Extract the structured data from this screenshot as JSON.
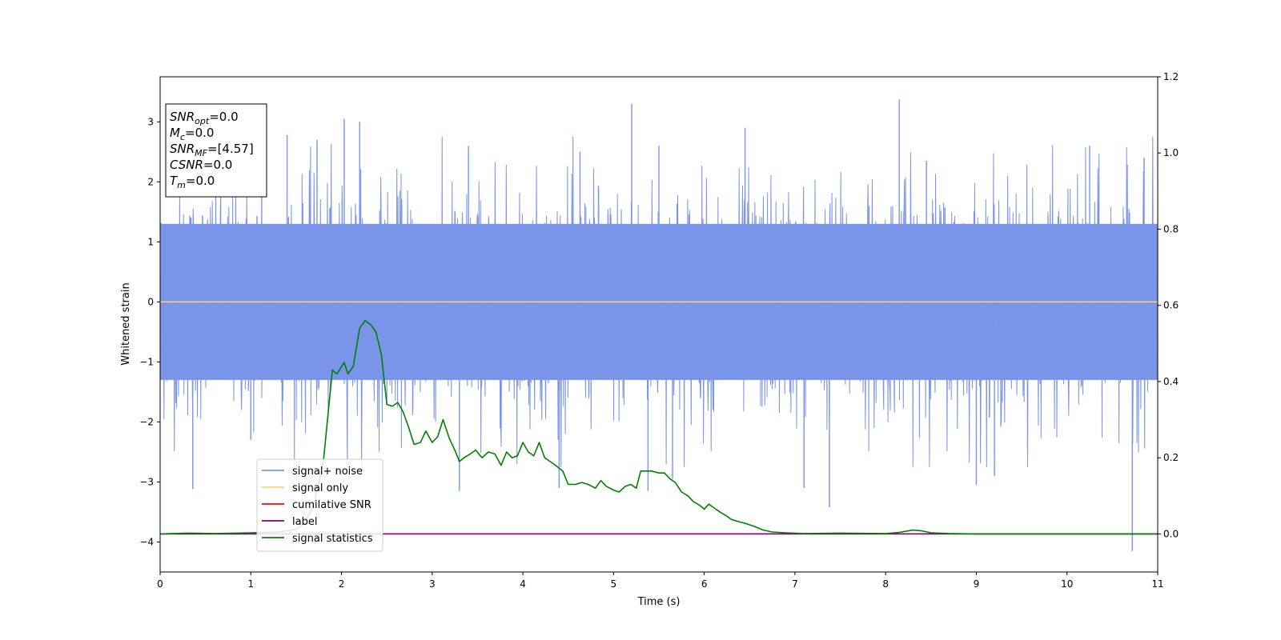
{
  "chart_data": {
    "type": "line",
    "xlabel": "Time (s)",
    "ylabel": "Whitened strain",
    "xlim": [
      0,
      11
    ],
    "ylim": [
      -4.5,
      3.75
    ],
    "y2lim": [
      -0.1,
      1.2
    ],
    "x_ticks": [
      0,
      1,
      2,
      3,
      4,
      5,
      6,
      7,
      8,
      9,
      10,
      11
    ],
    "y_ticks": [
      -4,
      -3,
      -2,
      -1,
      0,
      1,
      2,
      3
    ],
    "y2_ticks": [
      0.0,
      0.2,
      0.4,
      0.6,
      0.8,
      1.0,
      1.2
    ],
    "grid": false,
    "legend_position": "lower-left",
    "info_box": {
      "position": "upper-left",
      "lines": [
        {
          "base": "SNR",
          "sub": "opt",
          "value": "=0.0"
        },
        {
          "base": "M",
          "sub": "c",
          "value": "=0.0"
        },
        {
          "base": "SNR",
          "sub": "MF",
          "value": "=[4.57]"
        },
        {
          "base": "CSNR",
          "sub": "",
          "value": "=0.0"
        },
        {
          "base": "T",
          "sub": "m",
          "value": "=0.0"
        }
      ]
    },
    "series": [
      {
        "name": "signal+ noise",
        "color": "#7994e8",
        "axis": "left",
        "style": "noise",
        "band_lower": -1.3,
        "band_upper": 1.3,
        "peaks": [
          [
            0.36,
            -3.12
          ],
          [
            1.0,
            -2.3
          ],
          [
            1.12,
            2.4
          ],
          [
            1.4,
            2.78
          ],
          [
            1.73,
            2.7
          ],
          [
            2.03,
            3.05
          ],
          [
            2.2,
            3.0
          ],
          [
            3.3,
            -3.15
          ],
          [
            3.4,
            2.6
          ],
          [
            4.4,
            -3.1
          ],
          [
            4.63,
            2.5
          ],
          [
            5.2,
            3.3
          ],
          [
            5.38,
            -3.15
          ],
          [
            5.5,
            2.6
          ],
          [
            5.65,
            -2.95
          ],
          [
            6.45,
            2.9
          ],
          [
            7.1,
            -3.1
          ],
          [
            7.38,
            -3.42
          ],
          [
            8.15,
            3.37
          ],
          [
            8.45,
            2.35
          ],
          [
            9.0,
            -3.05
          ],
          [
            9.2,
            -2.9
          ],
          [
            10.25,
            2.6
          ],
          [
            10.72,
            -4.15
          ],
          [
            10.85,
            2.4
          ]
        ]
      },
      {
        "name": "signal only",
        "color": "#ffd27a",
        "axis": "left",
        "x": [
          0,
          11
        ],
        "y": [
          0,
          0
        ]
      },
      {
        "name": "cumilative SNR",
        "color": "#ff0000",
        "axis": "right",
        "x": [
          0,
          11
        ],
        "y": [
          0,
          0
        ]
      },
      {
        "name": "label",
        "color": "#800080",
        "axis": "right",
        "x": [
          0,
          11
        ],
        "y": [
          0,
          0
        ]
      },
      {
        "name": "signal statistics",
        "color": "#008000",
        "axis": "right",
        "x": [
          0,
          0.3,
          0.6,
          1.0,
          1.3,
          1.5,
          1.6,
          1.7,
          1.8,
          1.9,
          1.95,
          2.03,
          2.07,
          2.13,
          2.2,
          2.26,
          2.32,
          2.38,
          2.44,
          2.5,
          2.56,
          2.62,
          2.68,
          2.74,
          2.8,
          2.87,
          2.93,
          3.0,
          3.06,
          3.12,
          3.19,
          3.25,
          3.3,
          3.35,
          3.42,
          3.48,
          3.55,
          3.62,
          3.69,
          3.76,
          3.82,
          3.88,
          3.94,
          4.0,
          4.06,
          4.12,
          4.18,
          4.24,
          4.3,
          4.36,
          4.44,
          4.5,
          4.58,
          4.65,
          4.72,
          4.8,
          4.86,
          4.92,
          5.0,
          5.06,
          5.13,
          5.19,
          5.25,
          5.3,
          5.36,
          5.42,
          5.5,
          5.56,
          5.62,
          5.68,
          5.75,
          5.82,
          5.88,
          5.95,
          6.0,
          6.05,
          6.11,
          6.17,
          6.24,
          6.3,
          6.38,
          6.45,
          6.55,
          6.65,
          6.75,
          6.9,
          7.1,
          7.5,
          8.0,
          8.15,
          8.3,
          8.4,
          8.5,
          8.7,
          9.0,
          10.0,
          11.0
        ],
        "y": [
          0.0,
          0.002,
          0.001,
          0.003,
          0.005,
          0.012,
          0.03,
          0.08,
          0.19,
          0.43,
          0.42,
          0.45,
          0.42,
          0.44,
          0.54,
          0.56,
          0.55,
          0.53,
          0.47,
          0.34,
          0.335,
          0.345,
          0.32,
          0.28,
          0.235,
          0.24,
          0.27,
          0.24,
          0.255,
          0.3,
          0.25,
          0.22,
          0.19,
          0.2,
          0.21,
          0.22,
          0.2,
          0.215,
          0.21,
          0.18,
          0.215,
          0.2,
          0.205,
          0.24,
          0.215,
          0.205,
          0.24,
          0.2,
          0.19,
          0.18,
          0.165,
          0.13,
          0.13,
          0.135,
          0.13,
          0.12,
          0.14,
          0.125,
          0.115,
          0.11,
          0.125,
          0.13,
          0.12,
          0.165,
          0.165,
          0.165,
          0.16,
          0.16,
          0.145,
          0.135,
          0.11,
          0.1,
          0.085,
          0.075,
          0.065,
          0.078,
          0.068,
          0.058,
          0.048,
          0.038,
          0.032,
          0.028,
          0.02,
          0.01,
          0.005,
          0.003,
          0.001,
          0.002,
          0.001,
          0.004,
          0.01,
          0.008,
          0.003,
          0.001,
          0.0,
          0.0,
          0.0
        ]
      }
    ]
  }
}
